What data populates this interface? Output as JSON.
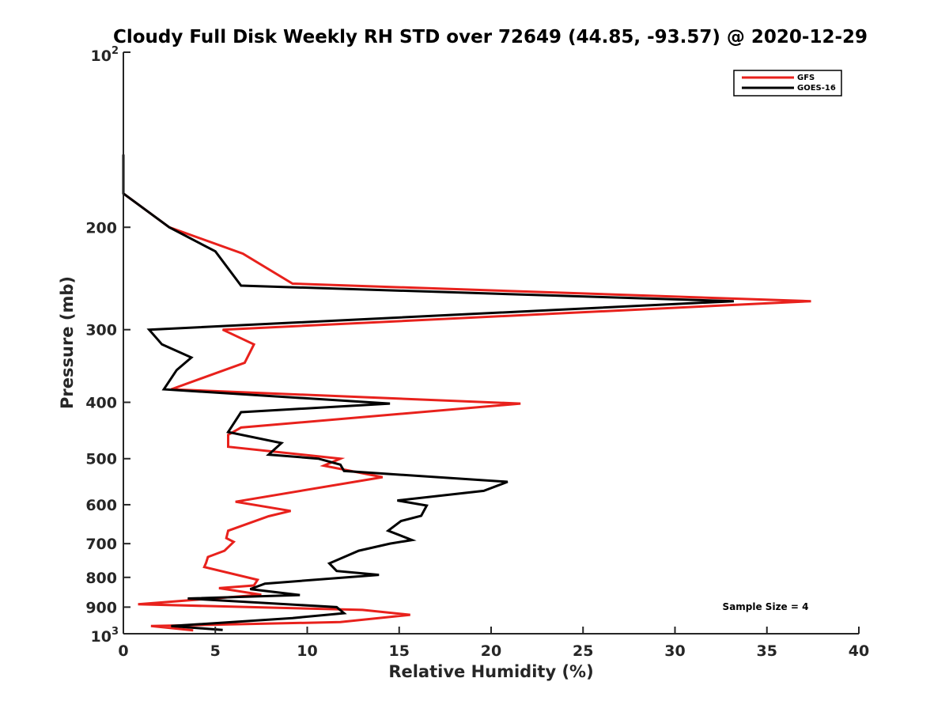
{
  "chart_data": {
    "type": "line",
    "title": "Cloudy Full Disk Weekly RH STD over 72649 (44.85, -93.57) @ 2020-12-29",
    "xlabel": "Relative Humidity (%)",
    "ylabel": "Pressure (mb)",
    "xlim": [
      0,
      40
    ],
    "ylim": [
      100,
      1000
    ],
    "y_scale": "log",
    "y_reversed": true,
    "x_ticks": [
      0,
      5,
      10,
      15,
      20,
      25,
      30,
      35,
      40
    ],
    "x_tick_labels": [
      "0",
      "5",
      "10",
      "15",
      "20",
      "25",
      "30",
      "35",
      "40"
    ],
    "y_ticks": [
      200,
      300,
      400,
      500,
      600,
      700,
      800,
      900
    ],
    "y_tick_labels": [
      "200",
      "300",
      "400",
      "500",
      "600",
      "700",
      "800",
      "900"
    ],
    "y_top_label": {
      "base": "10",
      "exp": "2"
    },
    "y_bottom_label": {
      "base": "10",
      "exp": "3"
    },
    "grid": false,
    "legend_position": "top-right",
    "series": [
      {
        "name": "GFS",
        "color": "#e8211c",
        "points": [
          [
            0,
            150
          ],
          [
            0,
            175
          ],
          [
            2.5,
            200
          ],
          [
            6.5,
            222
          ],
          [
            9.2,
            250
          ],
          [
            37.4,
            268
          ],
          [
            5.4,
            300
          ],
          [
            7.1,
            318
          ],
          [
            6.6,
            342
          ],
          [
            2.6,
            380
          ],
          [
            21.6,
            402
          ],
          [
            6.4,
            442
          ],
          [
            5.7,
            455
          ],
          [
            5.7,
            477
          ],
          [
            11.8,
            500
          ],
          [
            10.9,
            514
          ],
          [
            14.1,
            538
          ],
          [
            6.1,
            593
          ],
          [
            9.1,
            615
          ],
          [
            7.9,
            628
          ],
          [
            5.7,
            665
          ],
          [
            5.6,
            685
          ],
          [
            6.0,
            695
          ],
          [
            5.5,
            720
          ],
          [
            4.6,
            738
          ],
          [
            4.5,
            755
          ],
          [
            4.4,
            768
          ],
          [
            7.3,
            808
          ],
          [
            7.1,
            826
          ],
          [
            5.2,
            835
          ],
          [
            7.5,
            857
          ],
          [
            0.8,
            890
          ],
          [
            13.0,
            910
          ],
          [
            15.6,
            928
          ],
          [
            11.8,
            955
          ],
          [
            1.5,
            970
          ],
          [
            2.5,
            977
          ],
          [
            3.8,
            987
          ]
        ]
      },
      {
        "name": "GOES-16",
        "color": "#000000",
        "points": [
          [
            0,
            150
          ],
          [
            0,
            175
          ],
          [
            2.5,
            200
          ],
          [
            5.0,
            220
          ],
          [
            6.4,
            252
          ],
          [
            33.2,
            268
          ],
          [
            1.4,
            300
          ],
          [
            2.1,
            318
          ],
          [
            3.7,
            335
          ],
          [
            2.9,
            352
          ],
          [
            2.2,
            380
          ],
          [
            14.5,
            402
          ],
          [
            6.4,
            416
          ],
          [
            5.7,
            450
          ],
          [
            8.6,
            470
          ],
          [
            7.9,
            492
          ],
          [
            10.6,
            500
          ],
          [
            11.8,
            512
          ],
          [
            12.0,
            525
          ],
          [
            20.9,
            548
          ],
          [
            19.6,
            568
          ],
          [
            14.9,
            590
          ],
          [
            16.5,
            602
          ],
          [
            16.2,
            627
          ],
          [
            15.1,
            640
          ],
          [
            14.4,
            665
          ],
          [
            15.7,
            690
          ],
          [
            14.5,
            700
          ],
          [
            12.8,
            720
          ],
          [
            11.2,
            757
          ],
          [
            11.6,
            780
          ],
          [
            13.9,
            792
          ],
          [
            7.7,
            820
          ],
          [
            6.9,
            838
          ],
          [
            9.6,
            858
          ],
          [
            3.5,
            870
          ],
          [
            11.6,
            900
          ],
          [
            12.0,
            922
          ],
          [
            9.2,
            940
          ],
          [
            2.6,
            970
          ],
          [
            5.4,
            985
          ]
        ]
      }
    ],
    "annotations": [
      {
        "text": "Sample Size = 4"
      }
    ]
  }
}
